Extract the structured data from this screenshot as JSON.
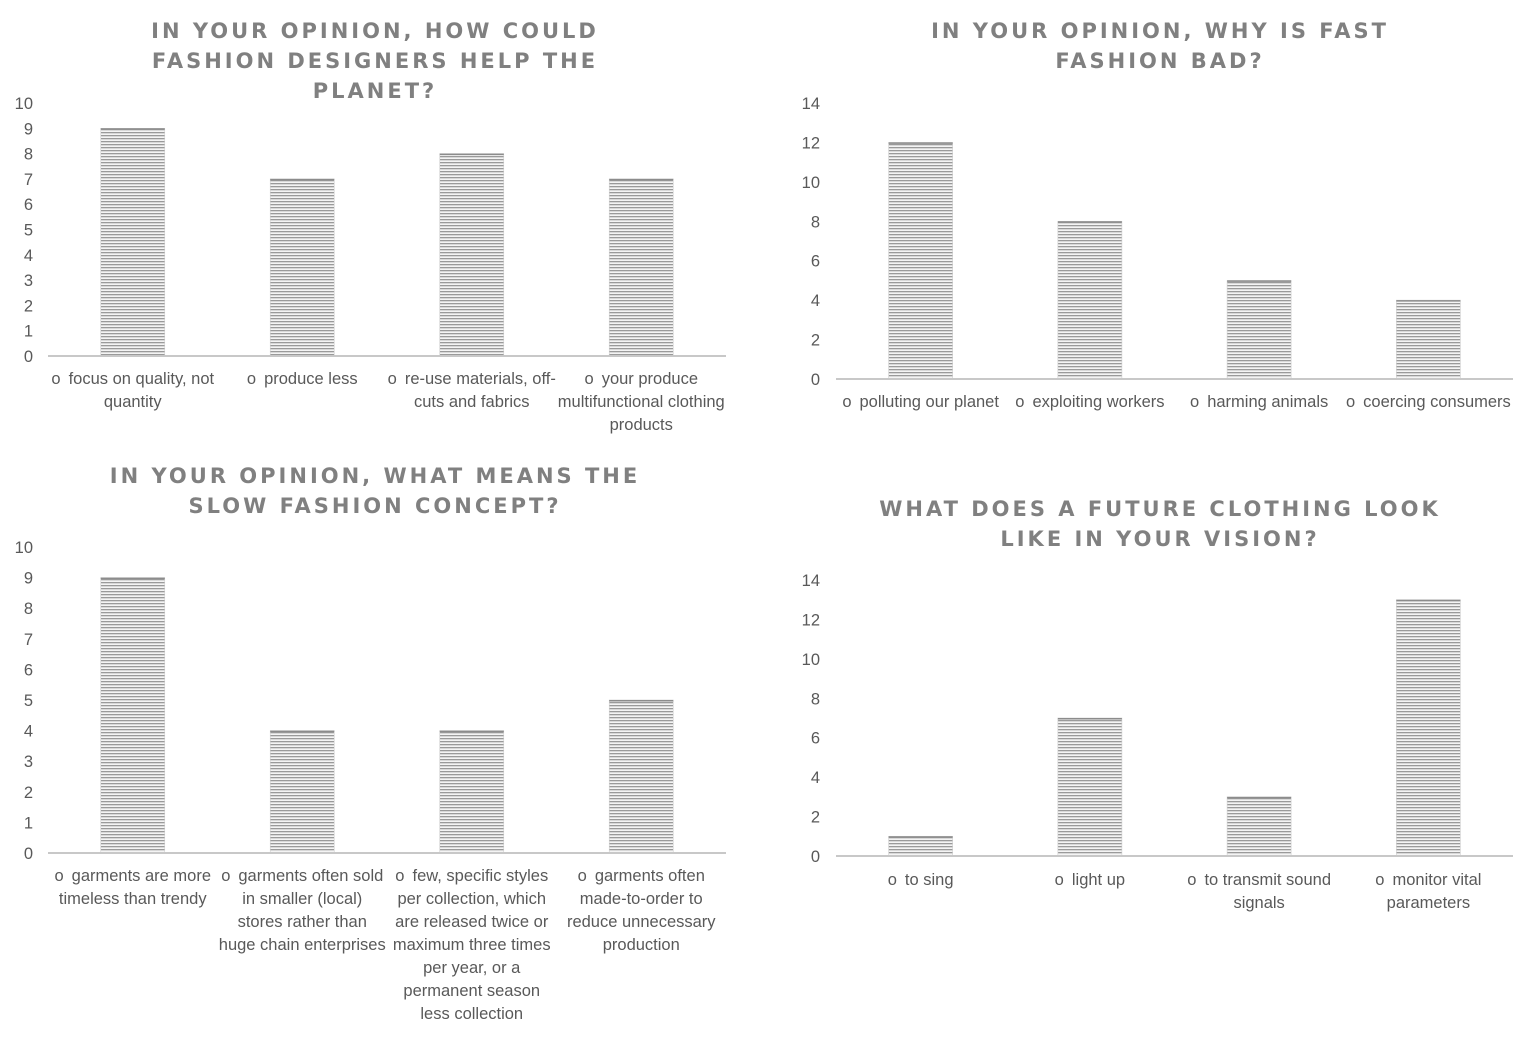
{
  "chart_data": [
    {
      "type": "bar",
      "title": "IN YOUR OPINION, HOW COULD FASHION DESIGNERS HELP THE PLANET?",
      "categories": [
        "focus on quality, not quantity",
        "produce less",
        "re-use materials, off-cuts and fabrics",
        "your produce multifunctional clothing products"
      ],
      "values": [
        9,
        7,
        8,
        7
      ],
      "yticks": [
        "0",
        "1",
        "2",
        "3",
        "4",
        "5",
        "6",
        "7",
        "8",
        "9",
        "10"
      ],
      "ylim": [
        0,
        10
      ],
      "bullet": "o",
      "legend": "none",
      "grid": false
    },
    {
      "type": "bar",
      "title": "IN YOUR OPINION, WHY IS FAST FASHION BAD?",
      "categories": [
        "polluting our planet",
        "exploiting workers",
        "harming animals",
        "coercing consumers"
      ],
      "values": [
        12,
        8,
        5,
        4
      ],
      "yticks": [
        "0",
        "2",
        "4",
        "6",
        "8",
        "10",
        "12",
        "14"
      ],
      "ylim": [
        0,
        14
      ],
      "bullet": "o",
      "legend": "none",
      "grid": false
    },
    {
      "type": "bar",
      "title": "IN YOUR OPINION, WHAT MEANS THE SLOW FASHION CONCEPT?",
      "categories": [
        "garments are more timeless than trendy",
        "garments often sold in smaller (local) stores rather than huge chain enterprises",
        "few, specific styles per collection, which are released twice or maximum three times per year, or a permanent season less collection",
        "garments often made-to-order to reduce unnecessary production"
      ],
      "values": [
        9,
        4,
        4,
        5
      ],
      "yticks": [
        "0",
        "1",
        "2",
        "3",
        "4",
        "5",
        "6",
        "7",
        "8",
        "9",
        "10"
      ],
      "ylim": [
        0,
        10
      ],
      "bullet": "o",
      "legend": "none",
      "grid": false
    },
    {
      "type": "bar",
      "title": "WHAT DOES A FUTURE CLOTHING LOOK LIKE IN YOUR VISION?",
      "categories": [
        "to sing",
        "light up",
        "to transmit sound signals",
        "monitor vital parameters"
      ],
      "values": [
        1,
        7,
        3,
        13
      ],
      "yticks": [
        "0",
        "2",
        "4",
        "6",
        "8",
        "10",
        "12",
        "14"
      ],
      "ylim": [
        0,
        14
      ],
      "bullet": "o",
      "legend": "none",
      "grid": false
    }
  ]
}
